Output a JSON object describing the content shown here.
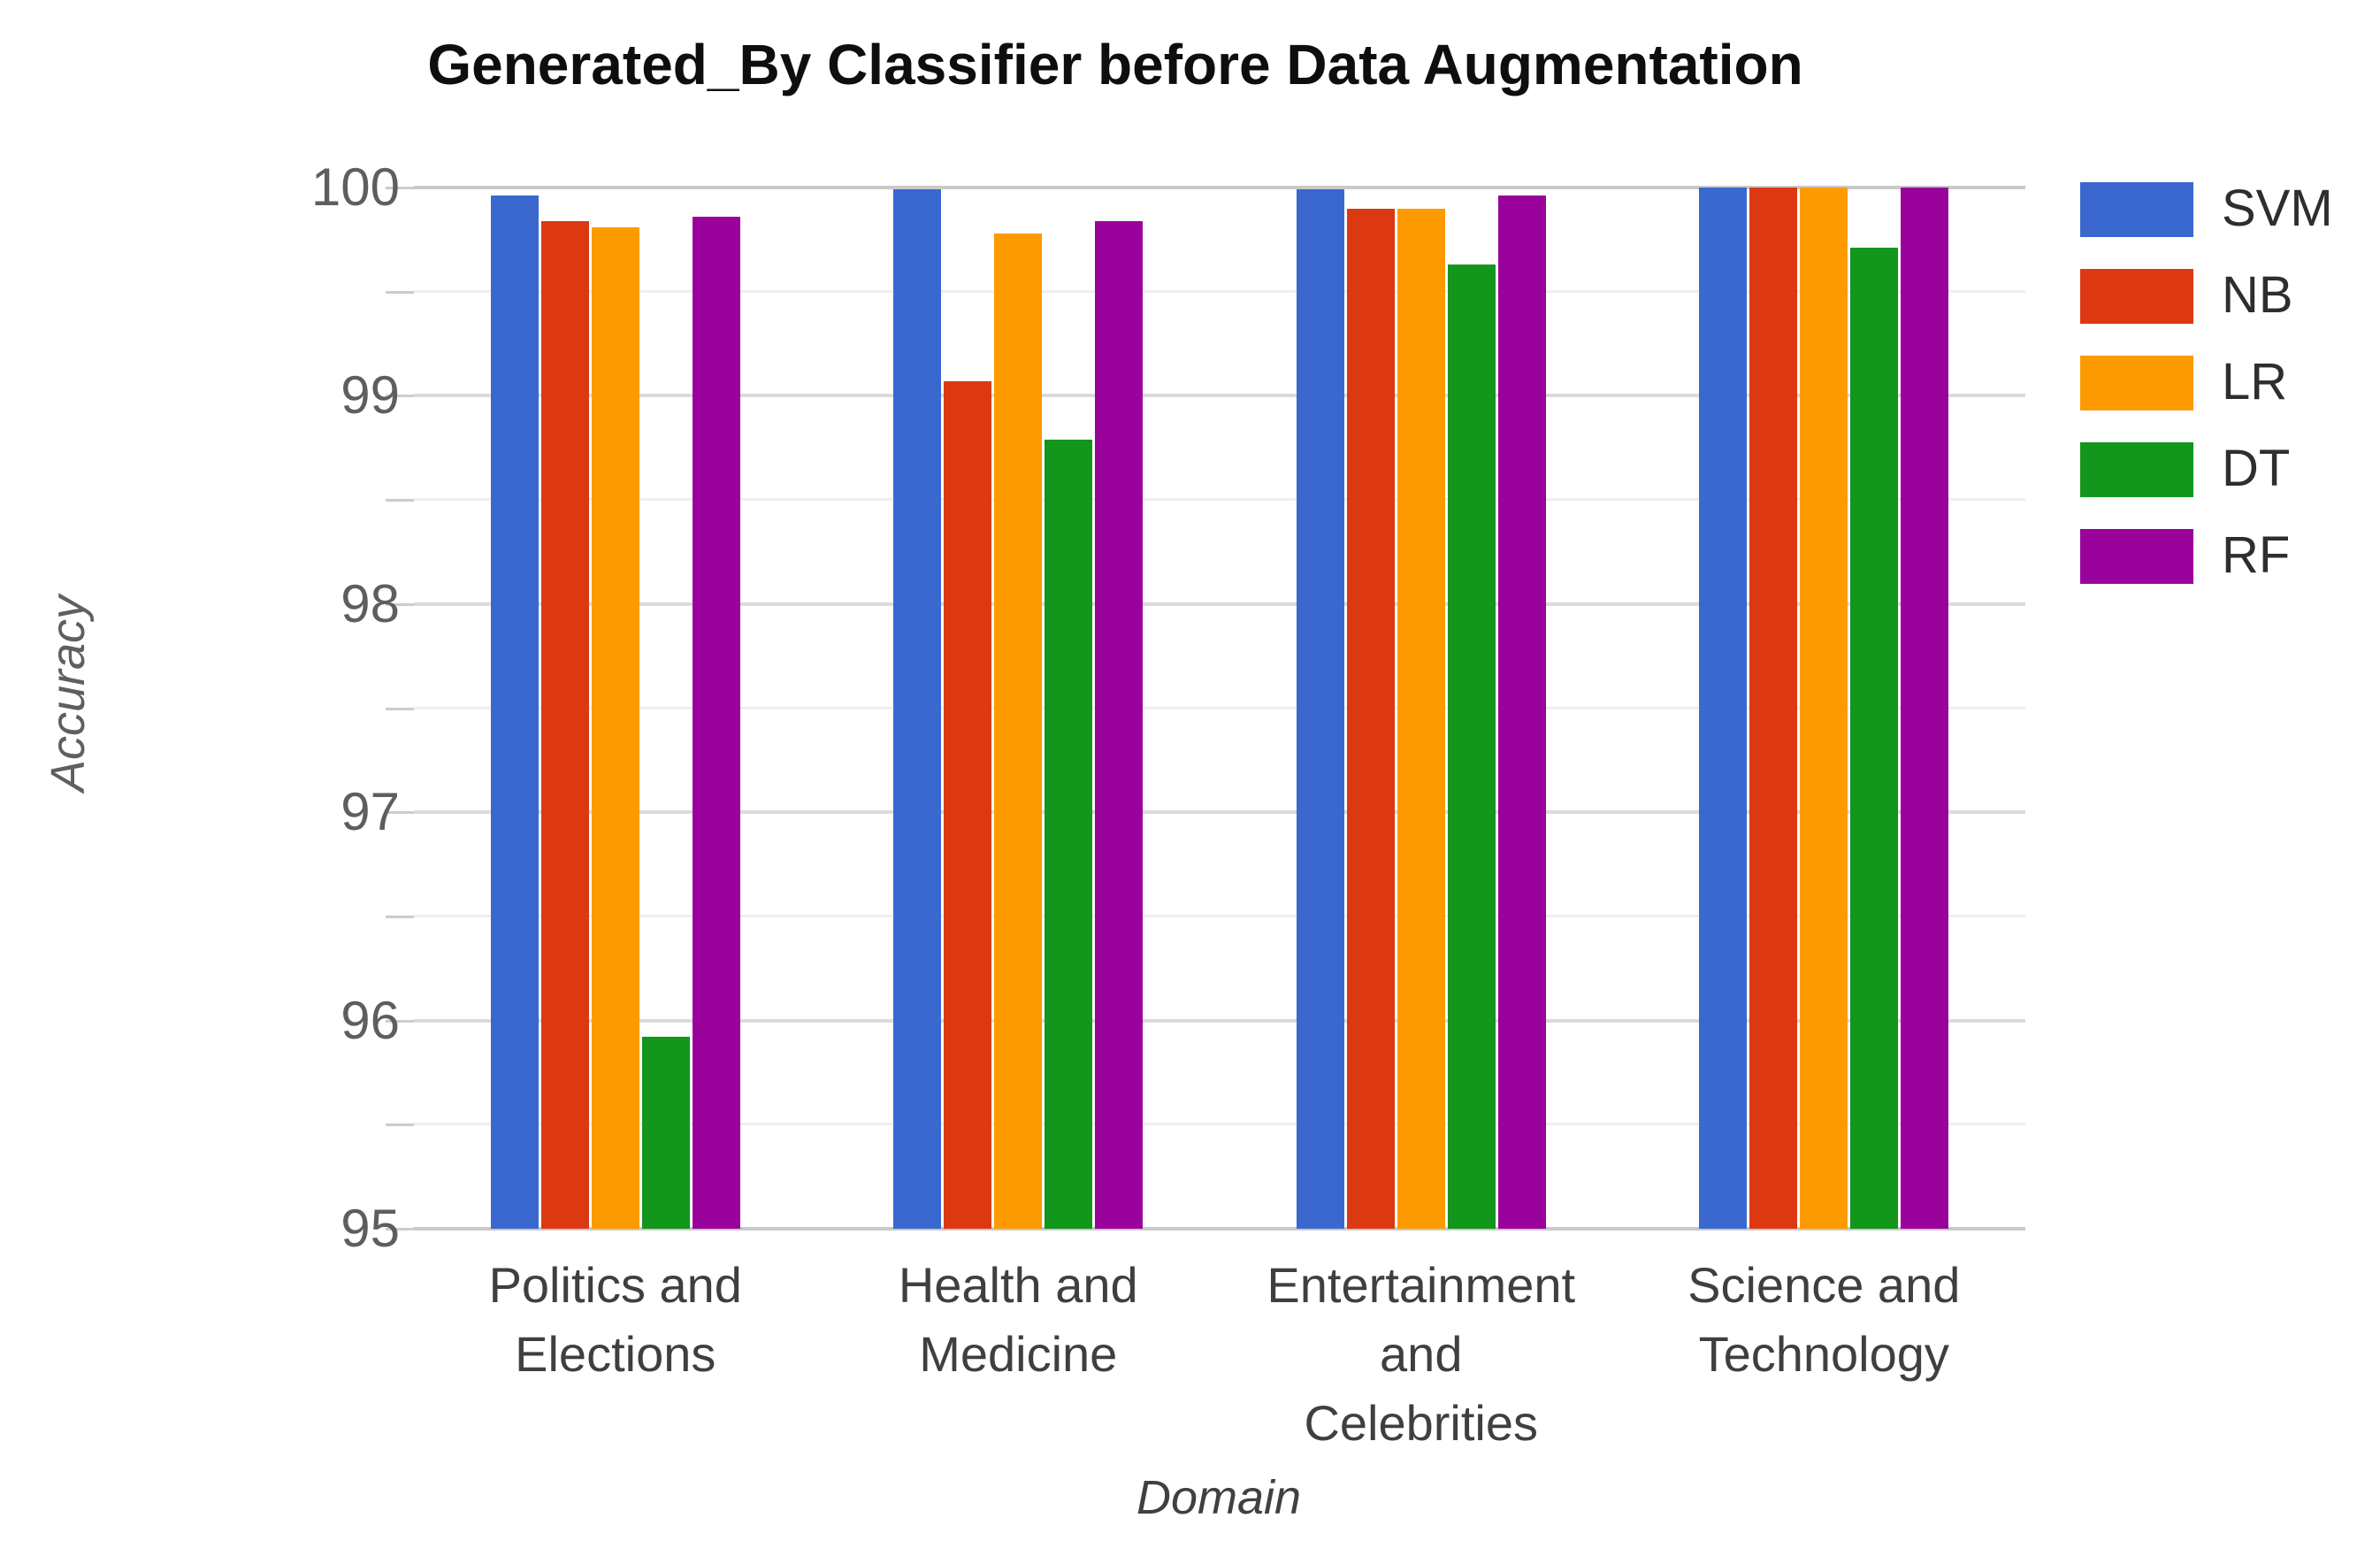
{
  "chart_title": "Generated_By Classifier before Data Augmentation",
  "y_axis": {
    "title": "Accuracy",
    "tick_labels": [
      "100",
      "99",
      "98",
      "97",
      "96",
      "95"
    ]
  },
  "x_axis": {
    "title": "Domain"
  },
  "legend": {
    "position": "right",
    "labels": [
      "SVM",
      "NB",
      "LR",
      "DT",
      "RF"
    ]
  },
  "colors": {
    "background": "#ffffff",
    "title_text": "#0e0e0e",
    "axis_text": "#5e5e5e",
    "category_text": "#3f3f3f",
    "legend_text": "#2e2e2e",
    "grid_edge": "#c9c9c9",
    "grid_major": "#dbdbdb",
    "grid_minor": "#efefef",
    "tick": "#cccccc"
  },
  "chart_data": {
    "type": "bar",
    "title": "Generated_By Classifier before Data Augmentation",
    "xlabel": "Domain",
    "ylabel": "Accuracy",
    "ylim": [
      95,
      100
    ],
    "y_major_step": 1,
    "y_minor_step": 0.5,
    "grid": true,
    "legend_position": "right",
    "categories": [
      "Politics and Elections",
      "Health and Medicine",
      "Entertainment and Celebrities",
      "Science and Technology"
    ],
    "category_label_lines": [
      [
        "Politics and",
        "Elections"
      ],
      [
        "Health and",
        "Medicine"
      ],
      [
        "Entertainment",
        "and",
        "Celebrities"
      ],
      [
        "Science and",
        "Technology"
      ]
    ],
    "series": [
      {
        "name": "SVM",
        "color": "#3a68cf",
        "values": [
          99.96,
          99.99,
          99.99,
          100.0
        ]
      },
      {
        "name": "NB",
        "color": "#dc3912",
        "values": [
          99.84,
          99.07,
          99.9,
          100.0
        ]
      },
      {
        "name": "LR",
        "color": "#fc9a00",
        "values": [
          99.81,
          99.78,
          99.9,
          100.0
        ]
      },
      {
        "name": "DT",
        "color": "#12961b",
        "values": [
          95.92,
          98.79,
          99.63,
          99.71
        ]
      },
      {
        "name": "RF",
        "color": "#99029b",
        "values": [
          99.86,
          99.84,
          99.96,
          100.0
        ]
      }
    ]
  }
}
